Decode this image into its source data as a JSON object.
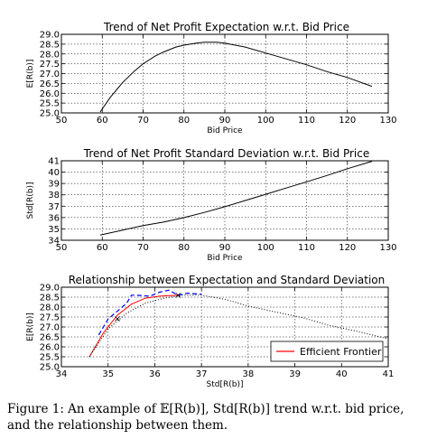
{
  "caption": "Figure 1: An example of 𝔼[R(b)], Std[R(b)] trend w.r.t. bid price, and the relationship between them.",
  "chart_data": [
    {
      "type": "line",
      "title": "Trend of Net Profit Expectation w.r.t. Bid Price",
      "xlabel": "Bid Price",
      "ylabel": "E[R(b)]",
      "xlim": [
        50,
        130
      ],
      "ylim": [
        25.0,
        29.0
      ],
      "xticks": [
        "50",
        "60",
        "70",
        "80",
        "90",
        "100",
        "110",
        "120",
        "130"
      ],
      "yticks": [
        "25.0",
        "25.5",
        "26.0",
        "26.5",
        "27.0",
        "27.5",
        "28.0",
        "28.5",
        "29.0"
      ],
      "grid": true,
      "series": [
        {
          "color": "#000000",
          "style": "solid",
          "x": [
            59.5,
            62,
            65,
            68,
            70,
            73,
            75,
            78,
            80,
            83,
            85,
            88,
            90,
            95,
            100,
            105,
            110,
            115,
            120,
            126
          ],
          "y": [
            25.05,
            25.8,
            26.55,
            27.15,
            27.5,
            27.9,
            28.1,
            28.35,
            28.45,
            28.55,
            28.6,
            28.6,
            28.55,
            28.35,
            28.05,
            27.75,
            27.45,
            27.1,
            26.8,
            26.35
          ]
        }
      ]
    },
    {
      "type": "line",
      "title": "Trend of Net Profit Standard Deviation w.r.t. Bid Price",
      "xlabel": "Bid Price",
      "ylabel": "Std[R(b)]",
      "xlim": [
        50,
        130
      ],
      "ylim": [
        34,
        41
      ],
      "xticks": [
        "50",
        "60",
        "70",
        "80",
        "90",
        "100",
        "110",
        "120",
        "130"
      ],
      "yticks": [
        "34",
        "35",
        "36",
        "37",
        "38",
        "39",
        "40",
        "41"
      ],
      "grid": true,
      "series": [
        {
          "color": "#000000",
          "style": "solid",
          "x": [
            59.5,
            65,
            70,
            75,
            80,
            85,
            90,
            95,
            100,
            105,
            110,
            115,
            120,
            126
          ],
          "y": [
            34.45,
            34.9,
            35.3,
            35.6,
            36.0,
            36.45,
            36.95,
            37.5,
            38.05,
            38.6,
            39.15,
            39.7,
            40.3,
            40.95
          ]
        }
      ]
    },
    {
      "type": "line",
      "title": "Relationship between Expectation and Standard Deviation",
      "xlabel": "Std[R(b)]",
      "ylabel": "E[R(b)]",
      "xlim": [
        34,
        41
      ],
      "ylim": [
        25.0,
        29.0
      ],
      "xticks": [
        "34",
        "35",
        "36",
        "37",
        "38",
        "39",
        "40",
        "41"
      ],
      "yticks": [
        "25.0",
        "25.5",
        "26.0",
        "26.5",
        "27.0",
        "27.5",
        "28.0",
        "28.5",
        "29.0"
      ],
      "grid": true,
      "legend": {
        "position": "bottom-right",
        "entries": [
          {
            "label": "Efficient Frontier",
            "color": "#ff0000"
          }
        ]
      },
      "series": [
        {
          "color": "#ff0000",
          "style": "solid",
          "label": "Efficient Frontier",
          "x": [
            34.6,
            34.9,
            35.2,
            35.5,
            35.8,
            36.1,
            36.5
          ],
          "y": [
            25.5,
            26.7,
            27.6,
            28.15,
            28.45,
            28.55,
            28.6
          ]
        },
        {
          "color": "#000000",
          "style": "dotted",
          "x": [
            34.6,
            35.0,
            35.4,
            35.8,
            36.2,
            36.6,
            37.0,
            37.5,
            38.0,
            38.6,
            39.2,
            39.7,
            40.3,
            41.0
          ],
          "y": [
            25.5,
            26.9,
            27.7,
            28.2,
            28.45,
            28.6,
            28.6,
            28.4,
            28.05,
            27.75,
            27.45,
            27.1,
            26.8,
            26.4
          ]
        },
        {
          "color": "#0000ff",
          "style": "dashed",
          "x": [
            34.8,
            35.0,
            35.2,
            35.4,
            35.5,
            35.6,
            35.9,
            36.1,
            36.3,
            36.5,
            36.7,
            37.0
          ],
          "y": [
            26.6,
            27.4,
            27.8,
            28.2,
            28.6,
            28.6,
            28.55,
            28.75,
            28.85,
            28.6,
            28.7,
            28.65
          ]
        }
      ],
      "markers": [
        {
          "x": 35.2,
          "y": 27.4,
          "symbol": "×"
        },
        {
          "x": 36.5,
          "y": 28.6,
          "symbol": "×"
        }
      ]
    }
  ]
}
